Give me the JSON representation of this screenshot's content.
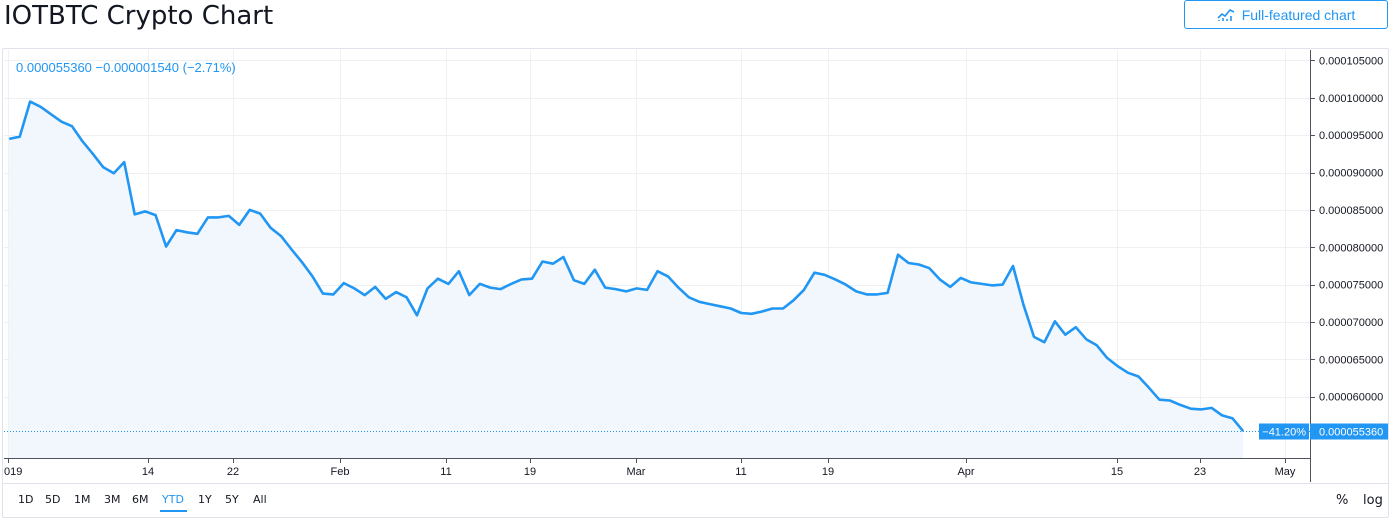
{
  "header": {
    "title": "IOTBTC Crypto Chart",
    "full_featured_label": "Full-featured chart"
  },
  "legend": {
    "price": "0.000055360",
    "change": "−0.000001540",
    "change_pct": "(−2.71%)"
  },
  "colors": {
    "line": "#2196f3",
    "grid": "#eef0f3",
    "accent": "#2196f3",
    "text": "#131722"
  },
  "ranges": [
    "1D",
    "5D",
    "1M",
    "3M",
    "6M",
    "YTD",
    "1Y",
    "5Y",
    "All"
  ],
  "active_range": "YTD",
  "scale_buttons": {
    "percent": "%",
    "log": "log"
  },
  "price_badge": {
    "pct": "−41.20%",
    "price": "0.000055360"
  },
  "chart_data": {
    "type": "area",
    "x_tick_labels": [
      "019",
      "14",
      "22",
      "Feb",
      "11",
      "19",
      "Mar",
      "11",
      "19",
      "Apr",
      "15",
      "23",
      "May"
    ],
    "y_tick_labels": [
      "0.000105000",
      "0.000100000",
      "0.000095000",
      "0.000090000",
      "0.000085000",
      "0.000080000",
      "0.000075000",
      "0.000070000",
      "0.000065000",
      "0.000060000"
    ],
    "ylim": [
      5.18e-05,
      0.0001064
    ],
    "x_range": [
      -0.5,
      124.4
    ],
    "grid": true,
    "series": [
      {
        "values": [
          9.45e-05,
          9.48e-05,
          9.95e-05,
          9.88e-05,
          9.78e-05,
          9.68e-05,
          9.62e-05,
          9.42e-05,
          9.25e-05,
          9.07e-05,
          8.99e-05,
          9.14e-05,
          8.44e-05,
          8.48e-05,
          8.43e-05,
          8.01e-05,
          8.23e-05,
          8.2e-05,
          8.18e-05,
          8.4e-05,
          8.4e-05,
          8.42e-05,
          8.3e-05,
          8.5e-05,
          8.45e-05,
          8.26e-05,
          8.15e-05,
          7.97e-05,
          7.8e-05,
          7.61e-05,
          7.38e-05,
          7.37e-05,
          7.52e-05,
          7.45e-05,
          7.36e-05,
          7.47e-05,
          7.31e-05,
          7.4e-05,
          7.33e-05,
          7.09e-05,
          7.45e-05,
          7.58e-05,
          7.51e-05,
          7.68e-05,
          7.36e-05,
          7.51e-05,
          7.46e-05,
          7.44e-05,
          7.51e-05,
          7.57e-05,
          7.58e-05,
          7.81e-05,
          7.78e-05,
          7.87e-05,
          7.56e-05,
          7.51e-05,
          7.7e-05,
          7.46e-05,
          7.44e-05,
          7.41e-05,
          7.45e-05,
          7.43e-05,
          7.68e-05,
          7.61e-05,
          7.46e-05,
          7.33e-05,
          7.27e-05,
          7.24e-05,
          7.21e-05,
          7.18e-05,
          7.12e-05,
          7.11e-05,
          7.14e-05,
          7.18e-05,
          7.18e-05,
          7.29e-05,
          7.43e-05,
          7.66e-05,
          7.63e-05,
          7.57e-05,
          7.5e-05,
          7.41e-05,
          7.37e-05,
          7.37e-05,
          7.39e-05,
          7.9e-05,
          7.79e-05,
          7.77e-05,
          7.72e-05,
          7.57e-05,
          7.47e-05,
          7.59e-05,
          7.53e-05,
          7.51e-05,
          7.49e-05,
          7.5e-05,
          7.75e-05,
          7.23e-05,
          6.8e-05,
          6.73e-05,
          7.01e-05,
          6.83e-05,
          6.93e-05,
          6.77e-05,
          6.69e-05,
          6.52e-05,
          6.41e-05,
          6.32e-05,
          6.27e-05,
          6.12e-05,
          5.96e-05,
          5.95e-05,
          5.89e-05,
          5.84e-05,
          5.83e-05,
          5.85e-05,
          5.75e-05,
          5.71e-05,
          5.54e-05
        ]
      }
    ]
  }
}
